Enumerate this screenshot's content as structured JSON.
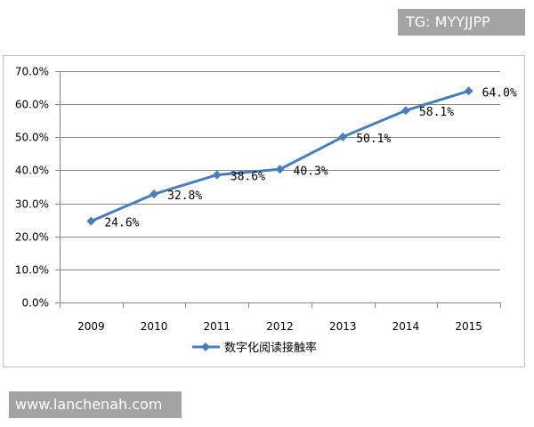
{
  "watermarks": {
    "top_right": "TG: MYYJJPP",
    "bottom_left": "www.lanchenah.com"
  },
  "colors": {
    "series": "#4A7EBB",
    "grid": "#868686",
    "axis": "#868686",
    "frame": "#BFBFBF",
    "watermark_bg": "#A3A3A3"
  },
  "chart_data": {
    "type": "line",
    "categories": [
      "2009",
      "2010",
      "2011",
      "2012",
      "2013",
      "2014",
      "2015"
    ],
    "series": [
      {
        "name": "数字化阅读接触率",
        "values": [
          24.6,
          32.8,
          38.6,
          40.3,
          50.1,
          58.1,
          64.0
        ],
        "data_labels": [
          "24.6%",
          "32.8%",
          "38.6%",
          "40.3%",
          "50.1%",
          "58.1%",
          "64.0%"
        ],
        "marker": "diamond"
      }
    ],
    "yticks": [
      0,
      10,
      20,
      30,
      40,
      50,
      60,
      70
    ],
    "ytick_labels": [
      "0.0%",
      "10.0%",
      "20.0%",
      "30.0%",
      "40.0%",
      "50.0%",
      "60.0%",
      "70.0%"
    ],
    "ylim": [
      0,
      70
    ],
    "grid": true,
    "legend": "bottom"
  }
}
